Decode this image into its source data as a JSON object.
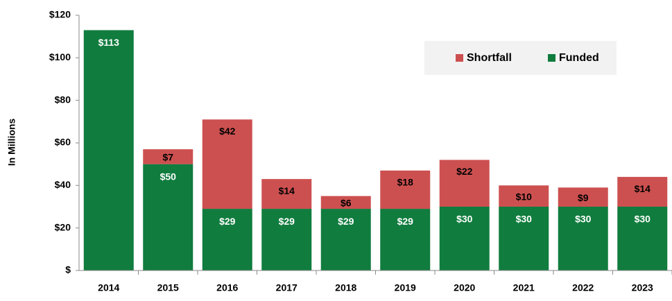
{
  "chart_data": {
    "type": "stacked_bar",
    "y_label": "In Millions",
    "categories": [
      "2014",
      "2015",
      "2016",
      "2017",
      "2018",
      "2019",
      "2020",
      "2021",
      "2022",
      "2023"
    ],
    "series": [
      {
        "name": "Funded",
        "color": "#107c3e",
        "values": [
          113,
          50,
          29,
          29,
          29,
          29,
          30,
          30,
          30,
          30
        ],
        "value_labels": [
          "$113",
          "$50",
          "$29",
          "$29",
          "$29",
          "$29",
          "$30",
          "$30",
          "$30",
          "$30"
        ]
      },
      {
        "name": "Shortfall",
        "color": "#cd5050",
        "values": [
          null,
          7,
          42,
          14,
          6,
          18,
          22,
          10,
          9,
          14
        ],
        "value_labels": [
          null,
          "$7",
          "$42",
          "$14",
          "$6",
          "$18",
          "$22",
          "$10",
          "$9",
          "$14"
        ]
      }
    ],
    "ylim": [
      0,
      120
    ],
    "yticks": [
      {
        "value": 0,
        "label": "$"
      },
      {
        "value": 20,
        "label": "$20"
      },
      {
        "value": 40,
        "label": "$40"
      },
      {
        "value": 60,
        "label": "$60"
      },
      {
        "value": 80,
        "label": "$80"
      },
      {
        "value": 100,
        "label": "$100"
      },
      {
        "value": 120,
        "label": "$120"
      }
    ],
    "legend": "top-right"
  }
}
